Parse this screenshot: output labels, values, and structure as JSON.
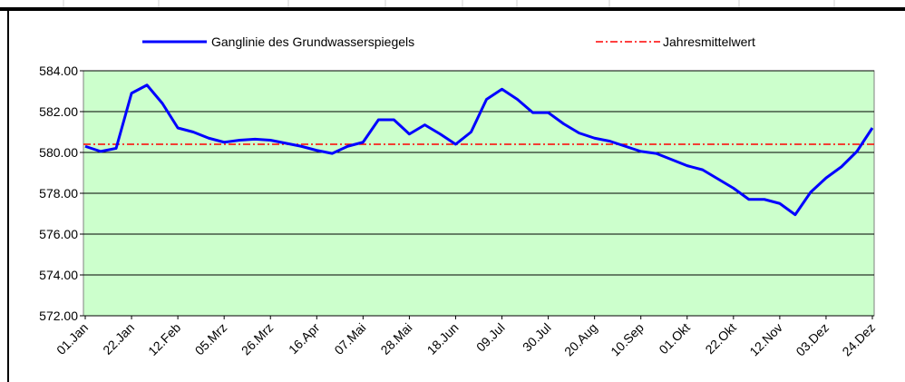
{
  "chart_data": {
    "type": "line",
    "categories": [
      "01.Jan",
      null,
      null,
      "22.Jan",
      null,
      null,
      "12.Feb",
      null,
      null,
      "05.Mrz",
      null,
      null,
      "26.Mrz",
      null,
      null,
      "16.Apr",
      null,
      null,
      "07.Mai",
      null,
      null,
      "28.Mai",
      null,
      null,
      "18.Jun",
      null,
      null,
      "09.Jul",
      null,
      null,
      "30.Jul",
      null,
      null,
      "20.Aug",
      null,
      null,
      "10.Sep",
      null,
      null,
      "01.Okt",
      null,
      null,
      "22.Okt",
      null,
      null,
      "12.Nov",
      null,
      null,
      "03.Dez",
      null,
      null,
      "24.Dez"
    ],
    "series": [
      {
        "name": "Ganglinie des Grundwasserspiegels",
        "color": "#0000ff",
        "values": [
          580.3,
          580.05,
          580.2,
          582.9,
          583.3,
          582.4,
          581.2,
          581.0,
          580.7,
          580.5,
          580.6,
          580.65,
          580.6,
          580.45,
          580.3,
          580.1,
          579.95,
          580.3,
          580.5,
          581.6,
          581.6,
          580.9,
          581.35,
          580.9,
          580.4,
          581.0,
          582.6,
          583.1,
          582.6,
          581.95,
          581.95,
          581.4,
          580.95,
          580.7,
          580.55,
          580.3,
          580.05,
          579.95,
          579.65,
          579.35,
          579.15,
          578.7,
          578.25,
          577.7,
          577.7,
          577.5,
          576.95,
          578.05,
          578.75,
          579.3,
          580.05,
          581.2
        ]
      }
    ],
    "mean_line": {
      "name": "Jahresmittelwert",
      "color": "#ff0000",
      "value": 580.4
    },
    "ylim": [
      572,
      584
    ],
    "yticks": [
      {
        "value": 572,
        "label": "572.00"
      },
      {
        "value": 574,
        "label": "574.00"
      },
      {
        "value": 576,
        "label": "576.00"
      },
      {
        "value": 578,
        "label": "578.00"
      },
      {
        "value": 580,
        "label": "580.00"
      },
      {
        "value": 582,
        "label": "582.00"
      },
      {
        "value": 584,
        "label": "584.00"
      }
    ],
    "grid": true,
    "plot_background": "#ccffcc"
  }
}
